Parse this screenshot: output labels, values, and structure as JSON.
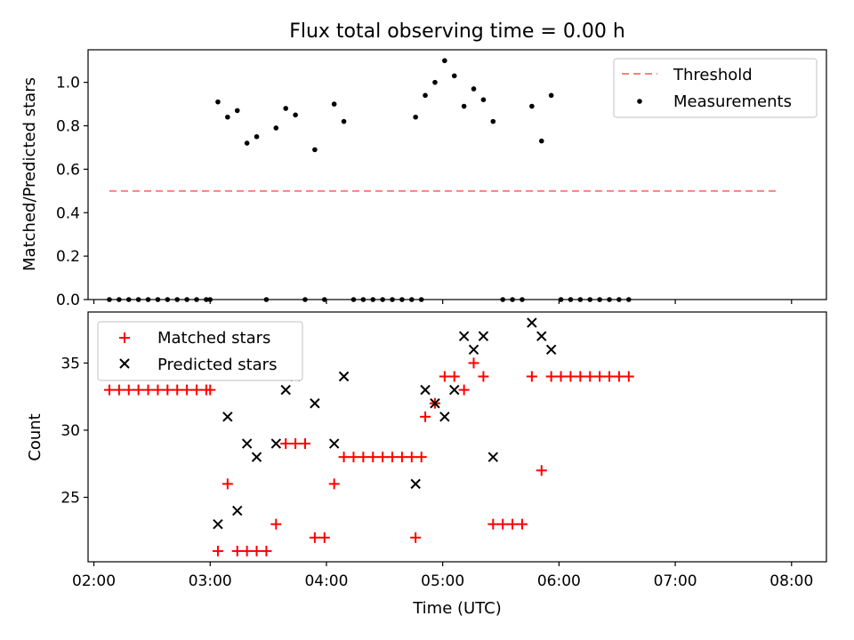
{
  "chart_data": [
    {
      "type": "scatter",
      "title": "Flux total observing time = 0.00 h",
      "ylabel": "Matched/Predicted stars",
      "xlim": [
        "01:57",
        "08:18"
      ],
      "ylim": [
        0,
        1.15
      ],
      "yticks": [
        0.0,
        0.2,
        0.4,
        0.6,
        0.8,
        1.0
      ],
      "ytick_labels": [
        "0.0",
        "0.2",
        "0.4",
        "0.6",
        "0.8",
        "1.0"
      ],
      "legend_position": "upper right",
      "threshold": {
        "name": "Threshold",
        "value": 0.5,
        "x_range": [
          "02:08",
          "07:54"
        ],
        "color": "#ff8080",
        "style": "dashed"
      },
      "series": [
        {
          "name": "Measurements",
          "color": "#000000",
          "marker": "dot",
          "points": [
            [
              "02:08",
              0
            ],
            [
              "02:13",
              0
            ],
            [
              "02:18",
              0
            ],
            [
              "02:23",
              0
            ],
            [
              "02:28",
              0
            ],
            [
              "02:33",
              0
            ],
            [
              "02:38",
              0
            ],
            [
              "02:43",
              0
            ],
            [
              "02:48",
              0
            ],
            [
              "02:53",
              0
            ],
            [
              "02:58",
              0
            ],
            [
              "03:00",
              0
            ],
            [
              "03:04",
              0.91
            ],
            [
              "03:09",
              0.84
            ],
            [
              "03:14",
              0.87
            ],
            [
              "03:19",
              0.72
            ],
            [
              "03:24",
              0.75
            ],
            [
              "03:29",
              0
            ],
            [
              "03:34",
              0.79
            ],
            [
              "03:39",
              0.88
            ],
            [
              "03:44",
              0.85
            ],
            [
              "03:49",
              0
            ],
            [
              "03:54",
              0.69
            ],
            [
              "03:59",
              0
            ],
            [
              "04:04",
              0.9
            ],
            [
              "04:09",
              0.82
            ],
            [
              "04:14",
              0
            ],
            [
              "04:19",
              0
            ],
            [
              "04:24",
              0
            ],
            [
              "04:29",
              0
            ],
            [
              "04:34",
              0
            ],
            [
              "04:39",
              0
            ],
            [
              "04:44",
              0
            ],
            [
              "04:49",
              0
            ],
            [
              "04:46",
              0.84
            ],
            [
              "04:51",
              0.94
            ],
            [
              "04:56",
              1.0
            ],
            [
              "05:01",
              1.1
            ],
            [
              "05:06",
              1.03
            ],
            [
              "05:11",
              0.89
            ],
            [
              "05:16",
              0.97
            ],
            [
              "05:21",
              0.92
            ],
            [
              "05:26",
              0.82
            ],
            [
              "05:31",
              0
            ],
            [
              "05:36",
              0
            ],
            [
              "05:41",
              0
            ],
            [
              "05:46",
              0.89
            ],
            [
              "05:51",
              0.73
            ],
            [
              "05:56",
              0.94
            ],
            [
              "06:01",
              0
            ],
            [
              "06:06",
              0
            ],
            [
              "06:11",
              0
            ],
            [
              "06:16",
              0
            ],
            [
              "06:21",
              0
            ],
            [
              "06:26",
              0
            ],
            [
              "06:31",
              0
            ],
            [
              "06:36",
              0
            ]
          ]
        }
      ]
    },
    {
      "type": "scatter",
      "xlabel": "Time (UTC)",
      "ylabel": "Count",
      "xlim": [
        "01:57",
        "08:18"
      ],
      "ylim": [
        20.2,
        38.8
      ],
      "yticks": [
        25,
        30,
        35
      ],
      "ytick_labels": [
        "25",
        "30",
        "35"
      ],
      "xticks": [
        "02:00",
        "03:00",
        "04:00",
        "05:00",
        "06:00",
        "07:00",
        "08:00"
      ],
      "legend_position": "upper left",
      "series": [
        {
          "name": "Matched stars",
          "color": "#ff0000",
          "marker": "plus",
          "points": [
            [
              "02:08",
              33
            ],
            [
              "02:13",
              33
            ],
            [
              "02:18",
              33
            ],
            [
              "02:23",
              33
            ],
            [
              "02:28",
              33
            ],
            [
              "02:33",
              33
            ],
            [
              "02:38",
              33
            ],
            [
              "02:43",
              33
            ],
            [
              "02:48",
              33
            ],
            [
              "02:53",
              33
            ],
            [
              "02:58",
              33
            ],
            [
              "03:00",
              33
            ],
            [
              "03:04",
              21
            ],
            [
              "03:09",
              26
            ],
            [
              "03:14",
              21
            ],
            [
              "03:19",
              21
            ],
            [
              "03:24",
              21
            ],
            [
              "03:29",
              21
            ],
            [
              "03:34",
              23
            ],
            [
              "03:39",
              29
            ],
            [
              "03:44",
              29
            ],
            [
              "03:49",
              29
            ],
            [
              "03:54",
              22
            ],
            [
              "03:59",
              22
            ],
            [
              "04:04",
              26
            ],
            [
              "04:09",
              28
            ],
            [
              "04:14",
              28
            ],
            [
              "04:19",
              28
            ],
            [
              "04:24",
              28
            ],
            [
              "04:29",
              28
            ],
            [
              "04:34",
              28
            ],
            [
              "04:39",
              28
            ],
            [
              "04:44",
              28
            ],
            [
              "04:49",
              28
            ],
            [
              "04:46",
              22
            ],
            [
              "04:51",
              31
            ],
            [
              "04:56",
              32
            ],
            [
              "05:01",
              34
            ],
            [
              "05:06",
              34
            ],
            [
              "05:11",
              33
            ],
            [
              "05:16",
              35
            ],
            [
              "05:21",
              34
            ],
            [
              "05:26",
              23
            ],
            [
              "05:31",
              23
            ],
            [
              "05:36",
              23
            ],
            [
              "05:41",
              23
            ],
            [
              "05:46",
              34
            ],
            [
              "05:51",
              27
            ],
            [
              "05:56",
              34
            ],
            [
              "06:01",
              34
            ],
            [
              "06:06",
              34
            ],
            [
              "06:11",
              34
            ],
            [
              "06:16",
              34
            ],
            [
              "06:21",
              34
            ],
            [
              "06:26",
              34
            ],
            [
              "06:31",
              34
            ],
            [
              "06:36",
              34
            ]
          ]
        },
        {
          "name": "Predicted stars",
          "color": "#000000",
          "marker": "x",
          "points": [
            [
              "03:04",
              23
            ],
            [
              "03:09",
              31
            ],
            [
              "03:14",
              24
            ],
            [
              "03:19",
              29
            ],
            [
              "03:24",
              28
            ],
            [
              "03:34",
              29
            ],
            [
              "03:39",
              33
            ],
            [
              "03:44",
              34
            ],
            [
              "03:54",
              32
            ],
            [
              "04:04",
              29
            ],
            [
              "04:09",
              34
            ],
            [
              "04:46",
              26
            ],
            [
              "04:51",
              33
            ],
            [
              "04:56",
              32
            ],
            [
              "05:01",
              31
            ],
            [
              "05:06",
              33
            ],
            [
              "05:11",
              37
            ],
            [
              "05:16",
              36
            ],
            [
              "05:21",
              37
            ],
            [
              "05:26",
              28
            ],
            [
              "05:46",
              38
            ],
            [
              "05:51",
              37
            ],
            [
              "05:56",
              36
            ]
          ]
        }
      ]
    }
  ]
}
